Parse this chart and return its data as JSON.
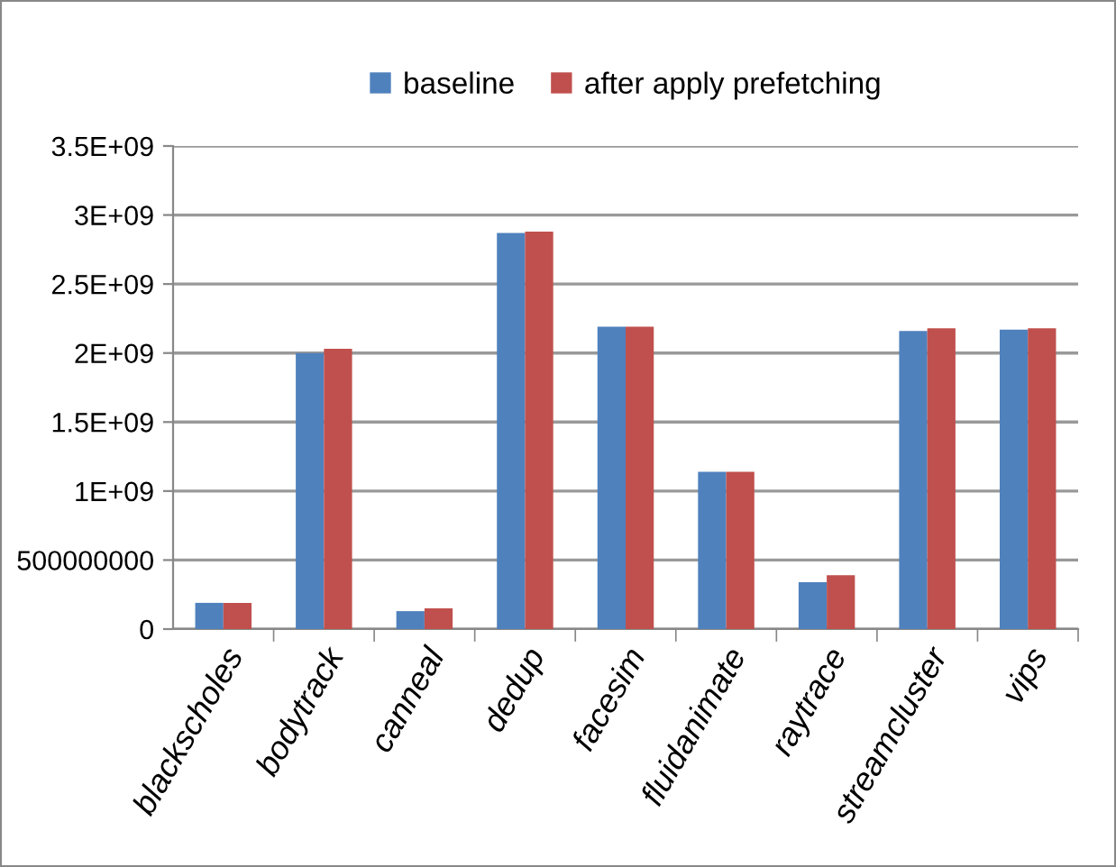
{
  "chart_data": {
    "type": "bar",
    "categories": [
      "blackscholes",
      "bodytrack",
      "canneal",
      "dedup",
      "facesim",
      "fluidanimate",
      "raytrace",
      "streamcluster",
      "vips"
    ],
    "series": [
      {
        "name": "baseline",
        "color": "#4f81bd",
        "values": [
          190000000,
          2000000000,
          130000000,
          2870000000,
          2190000000,
          1140000000,
          340000000,
          2160000000,
          2170000000
        ]
      },
      {
        "name": "after apply prefetching",
        "color": "#c0504d",
        "values": [
          190000000,
          2030000000,
          150000000,
          2880000000,
          2190000000,
          1140000000,
          390000000,
          2180000000,
          2180000000
        ]
      }
    ],
    "ylim": [
      0,
      3500000000
    ],
    "yticks": [
      0,
      {
        "value": 500000000,
        "label": "500000000"
      },
      {
        "value": 1000000000,
        "label": "1E+09"
      },
      {
        "value": 1500000000,
        "label": "1.5E+09"
      },
      {
        "value": 2000000000,
        "label": "2E+09"
      },
      {
        "value": 2500000000,
        "label": "2.5E+09"
      },
      {
        "value": 3000000000,
        "label": "3E+09"
      },
      {
        "value": 3500000000,
        "label": "3.5E+09"
      }
    ],
    "grid": "y",
    "legend": "top"
  }
}
